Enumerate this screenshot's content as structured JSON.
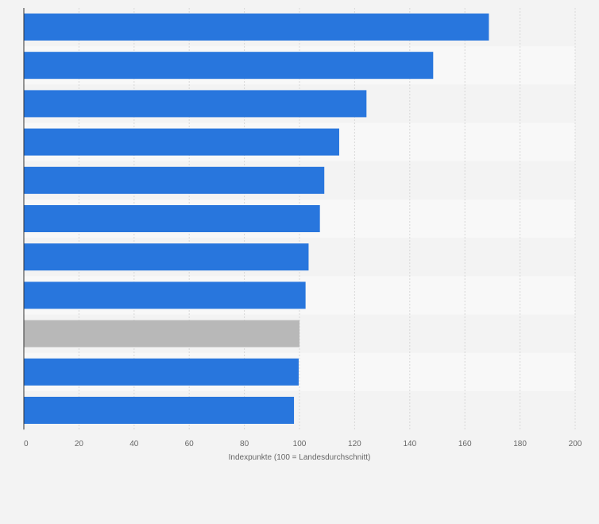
{
  "chart_data": {
    "type": "bar",
    "orientation": "horizontal",
    "categories": [
      "",
      "",
      "",
      "",
      "",
      "",
      "",
      "",
      "",
      "",
      ""
    ],
    "values": [
      168.7,
      148.5,
      124.3,
      114.4,
      109.0,
      107.4,
      103.3,
      102.2,
      100.0,
      99.7,
      98.0
    ],
    "highlight_index": 8,
    "xlabel": "Indexpunkte (100 = Landesdurchschnitt)",
    "xlim": [
      0,
      200
    ],
    "x_ticks": [
      0,
      20,
      40,
      60,
      80,
      100,
      120,
      140,
      160,
      180,
      200
    ],
    "grid": true,
    "legend": "none",
    "colors": {
      "bar": "#2876dd",
      "highlight": "#b8b8b8",
      "band_light": "#f8f8f8",
      "band_dark": "#f3f3f3",
      "grid": "#d8d8d8",
      "axis": "#333333",
      "text": "#666666",
      "background": "#f3f3f3"
    }
  }
}
